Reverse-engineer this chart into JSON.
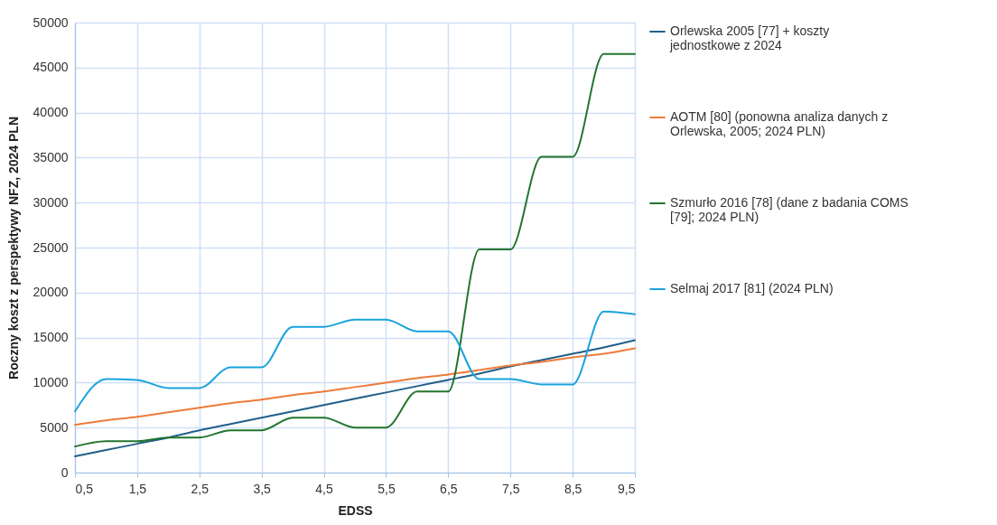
{
  "chart_data": {
    "type": "line",
    "xlabel": "EDSS",
    "ylabel": "Roczny koszt z perspektywy NFZ, 2024 PLN",
    "x": [
      0.5,
      1,
      1.5,
      2,
      2.5,
      3,
      3.5,
      4,
      4.5,
      5,
      5.5,
      6,
      6.5,
      7,
      7.5,
      8,
      8.5,
      9,
      9.5
    ],
    "series": [
      {
        "name": "Orlewska 2005 [77] + koszty jednostkowe z 2024",
        "color": "#215f8a",
        "values": [
          1800,
          2500,
          3200,
          3900,
          4700,
          5400,
          6100,
          6800,
          7500,
          8200,
          8900,
          9600,
          10300,
          11000,
          11800,
          12500,
          13200,
          13900,
          14700
        ]
      },
      {
        "name": "AOTM [80] (ponowna analiza danych z Orlewska, 2005; 2024 PLN)",
        "color": "#ee7b3a",
        "values": [
          5300,
          5800,
          6200,
          6700,
          7200,
          7700,
          8100,
          8600,
          9000,
          9500,
          10000,
          10500,
          10900,
          11400,
          11900,
          12300,
          12800,
          13200,
          13800
        ]
      },
      {
        "name": "Szmurło 2016 [78] (dane z badania COMS [79]; 2024 PLN)",
        "color": "#23752e",
        "values": [
          2900,
          3500,
          3500,
          3900,
          3900,
          4700,
          4700,
          6100,
          6100,
          5000,
          5000,
          9000,
          9000,
          24800,
          24800,
          35100,
          35100,
          46500,
          46500
        ]
      },
      {
        "name": "Selmaj 2017 [81] (2024 PLN)",
        "color": "#1aa3dc",
        "values": [
          6800,
          10400,
          10300,
          9400,
          9400,
          11700,
          11700,
          16200,
          16200,
          17000,
          17000,
          15700,
          15700,
          10400,
          10400,
          9800,
          9800,
          17900,
          17600
        ]
      }
    ],
    "xlim": [
      0.5,
      9.5
    ],
    "xticks": [
      {
        "value": 0.5,
        "label": "0,5"
      },
      {
        "value": 1.5,
        "label": "1,5"
      },
      {
        "value": 2.5,
        "label": "2,5"
      },
      {
        "value": 3.5,
        "label": "3,5"
      },
      {
        "value": 4.5,
        "label": "4,5"
      },
      {
        "value": 5.5,
        "label": "5,5"
      },
      {
        "value": 6.5,
        "label": "6,5"
      },
      {
        "value": 7.5,
        "label": "7,5"
      },
      {
        "value": 8.5,
        "label": "8,5"
      },
      {
        "value": 9.5,
        "label": "9,5"
      }
    ],
    "ylim": [
      0,
      50000
    ],
    "yticks": [
      0,
      5000,
      10000,
      15000,
      20000,
      25000,
      30000,
      35000,
      40000,
      45000,
      50000
    ],
    "grid": true,
    "legend": "right",
    "marker": "none",
    "line_style": "solid"
  }
}
